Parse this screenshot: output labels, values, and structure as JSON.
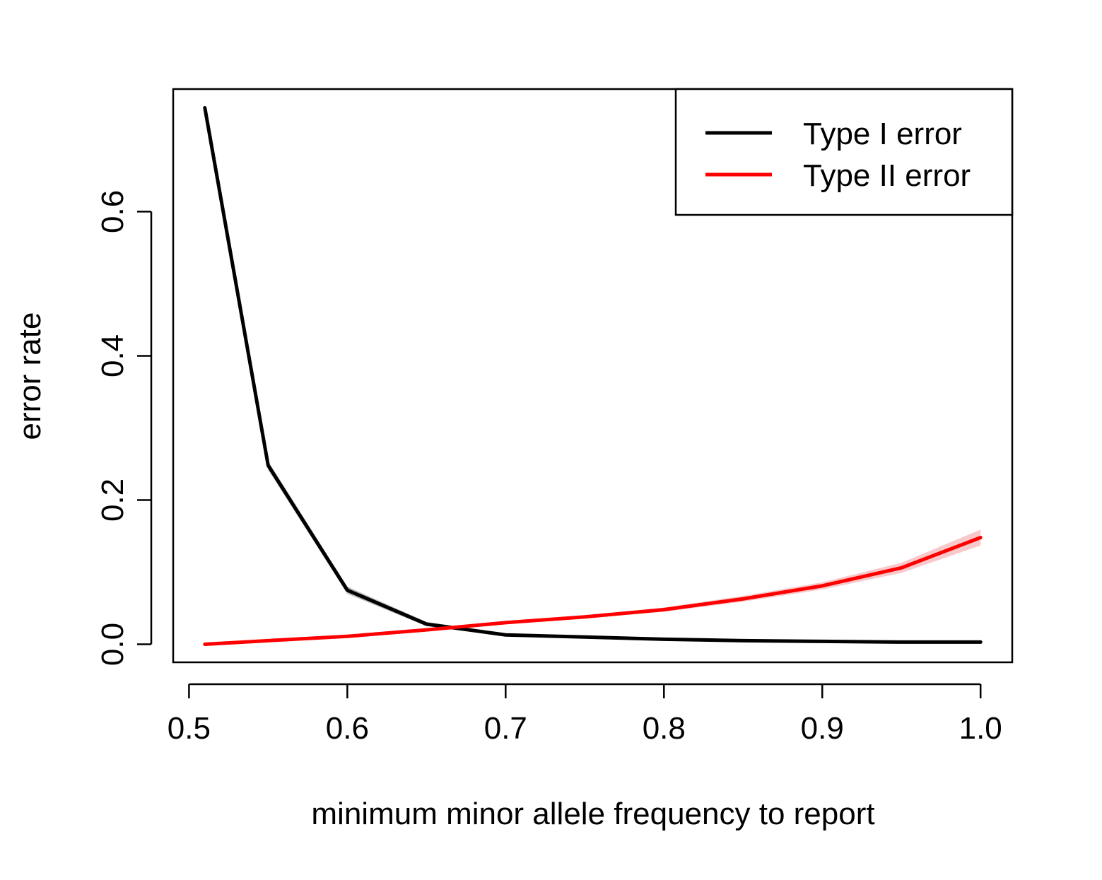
{
  "chart_data": {
    "type": "line",
    "title": "",
    "xlabel": "minimum minor allele frequency to report",
    "ylabel": "error rate",
    "xlim": [
      0.49,
      1.02
    ],
    "ylim": [
      -0.025,
      0.77
    ],
    "x_ticks": [
      0.5,
      0.6,
      0.7,
      0.8,
      0.9,
      1.0
    ],
    "x_tick_labels": [
      "0.5",
      "0.6",
      "0.7",
      "0.8",
      "0.9",
      "1.0"
    ],
    "y_ticks": [
      0.0,
      0.2,
      0.4,
      0.6
    ],
    "y_tick_labels": [
      "0.0",
      "0.2",
      "0.4",
      "0.6"
    ],
    "x": [
      0.51,
      0.55,
      0.6,
      0.65,
      0.7,
      0.75,
      0.8,
      0.85,
      0.9,
      0.95,
      1.0
    ],
    "series": [
      {
        "name": "Type I error",
        "color": "#000000",
        "band_color": "#bbbbbb",
        "values": [
          0.744,
          0.248,
          0.075,
          0.028,
          0.013,
          0.01,
          0.007,
          0.005,
          0.004,
          0.003,
          0.003
        ],
        "band_halfwidth": [
          0.004,
          0.006,
          0.005,
          0.003,
          0.002,
          0.001,
          0.001,
          0.001,
          0.001,
          0.001,
          0.001
        ]
      },
      {
        "name": "Type II error",
        "color": "#ff0000",
        "band_color": "#f7c9cb",
        "values": [
          0.0,
          0.005,
          0.011,
          0.02,
          0.03,
          0.038,
          0.048,
          0.063,
          0.081,
          0.106,
          0.148
        ],
        "band_halfwidth": [
          0.001,
          0.001,
          0.001,
          0.002,
          0.002,
          0.002,
          0.003,
          0.004,
          0.005,
          0.007,
          0.011
        ]
      }
    ],
    "legend": {
      "position": "top-right"
    },
    "grid": false
  }
}
